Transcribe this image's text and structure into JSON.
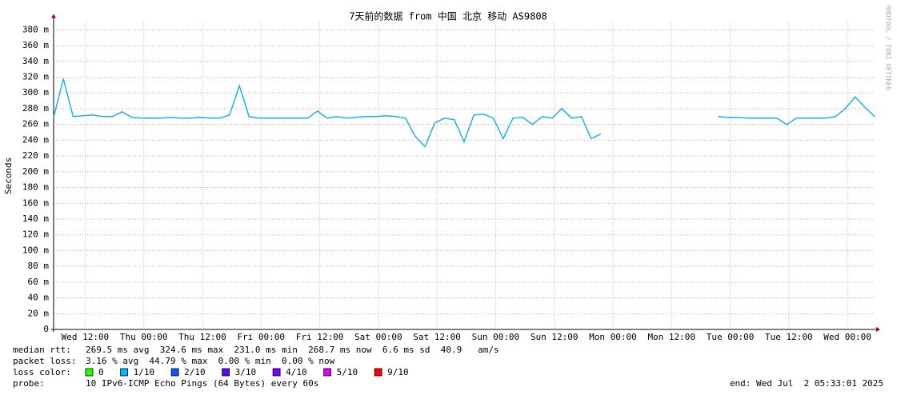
{
  "chart_data": {
    "type": "line",
    "title": "7天前的数据 from 中国 北京 移动 AS9808",
    "ylabel": "Seconds",
    "watermark": "RRDTOOL / TOBI OETIKER",
    "xlim": [
      0,
      168
    ],
    "xticks": [
      {
        "value": 6.45,
        "label": "Wed 12:00"
      },
      {
        "value": 18.45,
        "label": "Thu 00:00"
      },
      {
        "value": 30.45,
        "label": "Thu 12:00"
      },
      {
        "value": 42.45,
        "label": "Fri 00:00"
      },
      {
        "value": 54.45,
        "label": "Fri 12:00"
      },
      {
        "value": 66.45,
        "label": "Sat 00:00"
      },
      {
        "value": 78.45,
        "label": "Sat 12:00"
      },
      {
        "value": 90.45,
        "label": "Sun 00:00"
      },
      {
        "value": 102.45,
        "label": "Sun 12:00"
      },
      {
        "value": 114.45,
        "label": "Mon 00:00"
      },
      {
        "value": 126.45,
        "label": "Mon 12:00"
      },
      {
        "value": 138.45,
        "label": "Tue 00:00"
      },
      {
        "value": 150.45,
        "label": "Tue 12:00"
      },
      {
        "value": 162.45,
        "label": "Wed 00:00"
      }
    ],
    "ylim": [
      0,
      0.39
    ],
    "yticks": [
      0,
      {
        "value": 0.02,
        "label": "20 m"
      },
      {
        "value": 0.04,
        "label": "40 m"
      },
      {
        "value": 0.06,
        "label": "60 m"
      },
      {
        "value": 0.08,
        "label": "80 m"
      },
      {
        "value": 0.1,
        "label": "100 m"
      },
      {
        "value": 0.12,
        "label": "120 m"
      },
      {
        "value": 0.14,
        "label": "140 m"
      },
      {
        "value": 0.16,
        "label": "160 m"
      },
      {
        "value": 0.18,
        "label": "180 m"
      },
      {
        "value": 0.2,
        "label": "200 m"
      },
      {
        "value": 0.22,
        "label": "220 m"
      },
      {
        "value": 0.24,
        "label": "240 m"
      },
      {
        "value": 0.26,
        "label": "260 m"
      },
      {
        "value": 0.28,
        "label": "280 m"
      },
      {
        "value": 0.3,
        "label": "300 m"
      },
      {
        "value": 0.32,
        "label": "320 m"
      },
      {
        "value": 0.34,
        "label": "340 m"
      },
      {
        "value": 0.36,
        "label": "360 m"
      },
      {
        "value": 0.38,
        "label": "380 m"
      }
    ],
    "grid": true,
    "x": [
      0,
      2,
      4,
      6,
      8,
      10,
      12,
      14,
      16,
      18,
      20,
      22,
      24,
      26,
      28,
      30,
      32,
      34,
      36,
      38,
      40,
      42,
      44,
      46,
      48,
      50,
      52,
      54,
      56,
      58,
      60,
      62,
      64,
      66,
      68,
      70,
      72,
      74,
      76,
      78,
      80,
      82,
      84,
      86,
      88,
      90,
      92,
      94,
      96,
      98,
      100,
      102,
      104,
      106,
      108,
      110,
      112,
      114,
      116,
      118,
      120,
      122,
      124,
      126,
      128,
      130,
      132,
      134,
      136,
      138,
      140,
      142,
      144,
      146,
      148,
      150,
      152,
      154,
      156,
      158,
      160,
      162,
      164,
      166,
      168
    ],
    "series": [
      {
        "name": "median rtt",
        "color": "#1ab2e8",
        "values": [
          0.269,
          0.318,
          0.27,
          0.271,
          0.272,
          0.27,
          0.27,
          0.276,
          0.269,
          0.268,
          0.268,
          0.268,
          0.269,
          0.268,
          0.268,
          0.269,
          0.268,
          0.268,
          0.272,
          0.309,
          0.27,
          0.268,
          0.268,
          0.268,
          0.268,
          0.268,
          0.268,
          0.277,
          0.268,
          0.27,
          0.268,
          0.269,
          0.27,
          0.27,
          0.271,
          0.27,
          0.268,
          0.245,
          0.232,
          0.262,
          0.268,
          0.266,
          0.238,
          0.272,
          0.273,
          0.268,
          0.242,
          0.268,
          0.269,
          0.26,
          0.27,
          0.268,
          0.28,
          0.268,
          0.27,
          0.242,
          0.248,
          null,
          null,
          null,
          null,
          null,
          null,
          null,
          null,
          null,
          null,
          null,
          0.27,
          0.269,
          0.269,
          0.268,
          0.268,
          0.268,
          0.268,
          0.26,
          0.268,
          0.268,
          0.268,
          0.268,
          0.27,
          0.28,
          0.295,
          0.282,
          0.27
        ]
      }
    ],
    "legend": {
      "rtt_label": "median rtt:",
      "rtt_text": "269.5 ms avg  324.6 ms max  231.0 ms min  268.7 ms now  6.6 ms sd  40.9   am/s",
      "loss_label": "packet loss:",
      "loss_text": "3.16 % avg  44.79 % max  0.00 % min  0.00 % now",
      "color_label": "loss color:",
      "colors": [
        {
          "name": "0",
          "color": "#26ff00"
        },
        {
          "name": "1/10",
          "color": "#00b8ff"
        },
        {
          "name": "2/10",
          "color": "#0059ff"
        },
        {
          "name": "3/10",
          "color": "#5e00ff"
        },
        {
          "name": "4/10",
          "color": "#7e00ff"
        },
        {
          "name": "5/10",
          "color": "#dd00ff"
        },
        {
          "name": "9/10",
          "color": "#ff0000"
        }
      ],
      "probe_label": "probe:",
      "probe_text": "10 IPv6-ICMP Echo Pings (64 Bytes) every 60s",
      "end_text": "end: Wed Jul  2 05:33:01 2025"
    }
  }
}
